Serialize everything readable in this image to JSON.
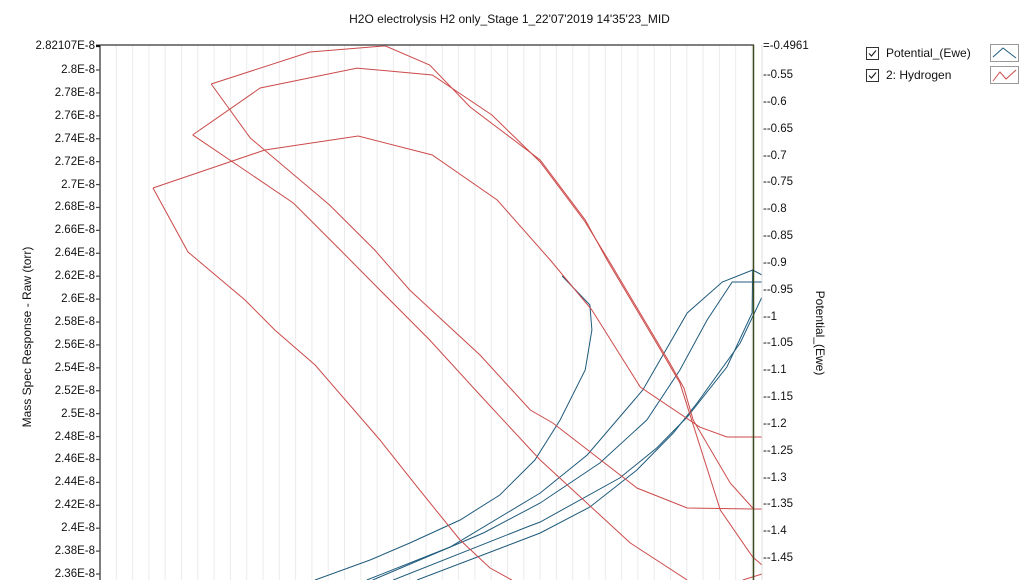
{
  "chart_data": {
    "type": "line",
    "title": "H2O electrolysis H2 only_Stage 1_22'07'2019 14'35'23_MID",
    "ylabel": "Mass Spec Response - Raw (torr)",
    "y2label": "Potential_(Ewe)",
    "xlim": [
      0,
      100
    ],
    "ylim": [
      2.36e-08,
      2.82107e-08
    ],
    "y2lim": [
      -1.49,
      -0.4961
    ],
    "grid": {
      "vertical": true,
      "horizontal": false
    },
    "legend_position": "top-right",
    "left_ticks": [
      "2.82107E-8",
      "2.8E-8",
      "2.78E-8",
      "2.76E-8",
      "2.74E-8",
      "2.72E-8",
      "2.7E-8",
      "2.68E-8",
      "2.66E-8",
      "2.64E-8",
      "2.62E-8",
      "2.6E-8",
      "2.58E-8",
      "2.56E-8",
      "2.54E-8",
      "2.52E-8",
      "2.5E-8",
      "2.48E-8",
      "2.46E-8",
      "2.44E-8",
      "2.42E-8",
      "2.4E-8",
      "2.38E-8",
      "2.36E-8"
    ],
    "right_ticks": [
      "-0.4961",
      "-0.55",
      "-0.6",
      "-0.65",
      "-0.7",
      "-0.75",
      "-0.8",
      "-0.85",
      "-0.9",
      "-0.95",
      "-1",
      "-1.05",
      "-1.1",
      "-1.15",
      "-1.2",
      "-1.25",
      "-1.3",
      "-1.35",
      "-1.4",
      "-1.45"
    ],
    "series": [
      {
        "name": "Potential_(Ewe)",
        "axis": "right",
        "color": "#1f5b7c",
        "checked": true,
        "segments": [
          {
            "x": [
              69.8,
              74.0,
              74.3,
              73.3,
              69.5,
              65.7,
              60.4,
              54.4,
              46.8,
              40.8,
              32.5
            ],
            "y": [
              -0.9245,
              -0.9785,
              -1.0251,
              -1.0997,
              -1.1928,
              -1.2673,
              -1.3326,
              -1.3791,
              -1.422,
              -1.4537,
              -1.4909
            ]
          },
          {
            "x": [
              40.3,
              52.9,
              66.5,
              73.6,
              82.0,
              88.7,
              94.0,
              98.6
            ],
            "y": [
              -1.4909,
              -1.4294,
              -1.3288,
              -1.258,
              -1.1369,
              -0.9934,
              -0.9357,
              -0.9133
            ]
          },
          {
            "x": [
              41.2,
              57.9,
              66.5,
              75.5,
              82.6,
              87.6,
              91.7,
              95.5,
              100
            ],
            "y": [
              -1.4909,
              -1.4034,
              -1.3475,
              -1.2729,
              -1.1928,
              -1.0997,
              -1.0065,
              -0.9357,
              -0.9357
            ]
          },
          {
            "x": [
              44.3,
              64.5,
              66.5,
              78.5,
              84.1,
              88.7,
              94.7,
              98.5,
              98.6,
              100
            ],
            "y": [
              -1.4909,
              -1.3922,
              -1.3829,
              -1.3009,
              -1.245,
              -1.1872,
              -1.0941,
              -0.9934,
              -0.9133,
              -0.9227
            ]
          },
          {
            "x": [
              47.9,
              66.5,
              74.0,
              81.1,
              86.6,
              90.2,
              96.7,
              100
            ],
            "y": [
              -1.4909,
              -1.4034,
              -1.3549,
              -1.286,
              -1.2171,
              -1.1611,
              -1.0494,
              -0.9636
            ]
          }
        ]
      },
      {
        "name": "2: Hydrogen",
        "axis": "left",
        "color": "#cc4a4a",
        "checked": true,
        "segments": [
          {
            "x": [
              16.8,
              31.7,
              43.1,
              49.8,
              55.9,
              66.5,
              73.3,
              76.6,
              85.3,
              87.6,
              93.7,
              98.6,
              100
            ],
            "y": [
              2.7878e-08,
              2.8157e-08,
              2.821e-08,
              2.8044e-08,
              2.7677e-08,
              2.7214e-08,
              2.6691e-08,
              2.6341e-08,
              2.5495e-08,
              2.5268e-08,
              2.4159e-08,
              2.3749e-08,
              2.3679e-08
            ]
          },
          {
            "x": [
              16.8,
              22.7,
              34.7,
              41.5,
              46.8,
              57.4,
              65.0,
              68.4,
              81.1,
              88.7,
              98.6,
              100
            ],
            "y": [
              2.7878e-08,
              2.7406e-08,
              2.6821e-08,
              2.6429e-08,
              2.6079e-08,
              2.5512e-08,
              2.5032e-08,
              2.4918e-08,
              2.4351e-08,
              2.4176e-08,
              2.4168e-08,
              2.4168e-08
            ]
          },
          {
            "x": [
              14.0,
              24.2,
              38.8,
              50.2,
              59.2,
              66.5,
              73.3,
              77.0,
              85.8,
              88.2,
              89.6,
              95.2,
              98.6
            ],
            "y": [
              2.7433e-08,
              2.7843e-08,
              2.8017e-08,
              2.7956e-08,
              2.7607e-08,
              2.7197e-08,
              2.6673e-08,
              2.6324e-08,
              2.5468e-08,
              2.5224e-08,
              2.4944e-08,
              2.4395e-08,
              2.4176e-08
            ]
          },
          {
            "x": [
              14.0,
              29.2,
              36.3,
              42.3,
              49.8,
              57.4,
              66.5,
              80.1,
              88.7
            ],
            "y": [
              2.7433e-08,
              2.6839e-08,
              2.6429e-08,
              2.6079e-08,
              2.5643e-08,
              2.5163e-08,
              2.4595e-08,
              2.3871e-08,
              2.3548e-08
            ]
          },
          {
            "x": [
              8.0,
              24.9,
              39.0,
              50.2,
              60.0,
              68.0,
              74.3,
              81.6,
              90.6,
              94.7,
              100
            ],
            "y": [
              2.697e-08,
              2.7302e-08,
              2.7424e-08,
              2.7258e-08,
              2.6865e-08,
              2.6341e-08,
              2.5905e-08,
              2.5233e-08,
              2.4883e-08,
              2.4796e-08,
              2.4796e-08
            ]
          },
          {
            "x": [
              8.0,
              13.3,
              21.9,
              26.4,
              32.5,
              42.3,
              48.3,
              54.4,
              58.9,
              62.2
            ],
            "y": [
              2.697e-08,
              2.6411e-08,
              2.5992e-08,
              2.573e-08,
              2.5425e-08,
              2.477e-08,
              2.4333e-08,
              2.3897e-08,
              2.3653e-08,
              2.3548e-08
            ]
          },
          {
            "x": [
              97.1,
              100
            ],
            "y": [
              2.3548e-08,
              2.36e-08
            ]
          }
        ]
      }
    ]
  }
}
